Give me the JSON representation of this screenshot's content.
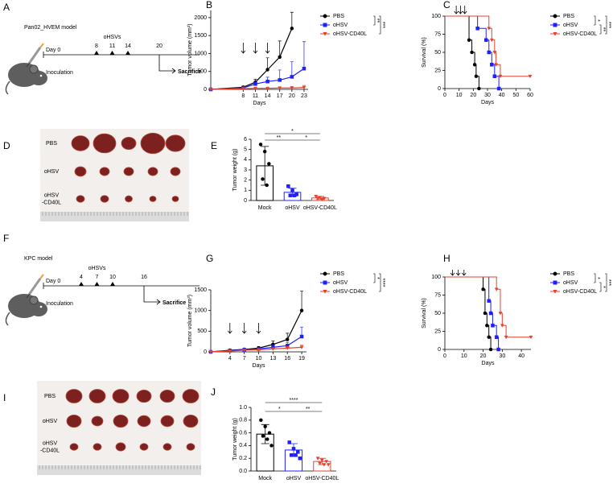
{
  "schematics": [
    {
      "panel_label": "A",
      "model": "Pan02_HVEM model",
      "start_label": "Day 0",
      "treatment": "oHSVs",
      "injection_days": [
        8,
        11,
        14
      ],
      "sacrifice_day": 20,
      "inoculation": "Inoculation",
      "sacrifice": "Sacrifice"
    },
    {
      "panel_label": "F",
      "model": "KPC model",
      "start_label": "Day 0",
      "treatment": "oHSVs",
      "injection_days": [
        4,
        7,
        10
      ],
      "sacrifice_day": 16,
      "inoculation": "Inoculation",
      "sacrifice": "Sacrifice"
    }
  ],
  "photos": [
    {
      "panel_label": "D",
      "row_labels": [
        [
          "PBS"
        ],
        [
          "oHSV"
        ],
        [
          "oHSV",
          "-CD40L"
        ]
      ]
    },
    {
      "panel_label": "I",
      "row_labels": [
        [
          "PBS"
        ],
        [
          "oHSV"
        ],
        [
          "oHSV",
          "-CD40L"
        ]
      ]
    }
  ],
  "chart_data": [
    {
      "panel_label": "B",
      "type": "line",
      "xlabel": "Days",
      "ylabel": "Tumor volume (mm³)",
      "x": [
        0,
        8,
        11,
        14,
        17,
        20,
        23
      ],
      "xlim": [
        0,
        24
      ],
      "xticks": [
        8,
        11,
        14,
        17,
        20,
        23
      ],
      "ylim": [
        0,
        2200
      ],
      "yticks": [
        0,
        500,
        1000,
        1500,
        2000
      ],
      "arrow_days": [
        8,
        11,
        14
      ],
      "significance": [
        "**",
        "***"
      ],
      "series": [
        {
          "name": "PBS",
          "color": "#000000",
          "marker": "circle",
          "values": [
            0,
            60,
            200,
            550,
            900,
            1700,
            null
          ],
          "errors": [
            0,
            30,
            80,
            330,
            450,
            450,
            null
          ]
        },
        {
          "name": "oHSV",
          "color": "#1f1fff",
          "marker": "square",
          "values": [
            0,
            40,
            150,
            220,
            260,
            350,
            580
          ],
          "errors": [
            0,
            20,
            70,
            120,
            280,
            420,
            750
          ]
        },
        {
          "name": "oHSV-CD40L",
          "color": "#e8412c",
          "marker": "triangle-down",
          "values": [
            0,
            20,
            30,
            30,
            40,
            40,
            50
          ],
          "errors": [
            0,
            10,
            20,
            20,
            30,
            40,
            60
          ]
        }
      ]
    },
    {
      "panel_label": "C",
      "type": "survival",
      "xlabel": "Days",
      "ylabel": "Survival (%)",
      "xlim": [
        0,
        60
      ],
      "xticks": [
        0,
        10,
        20,
        30,
        40,
        50,
        60
      ],
      "ylim": [
        0,
        100
      ],
      "yticks": [
        0,
        25,
        50,
        75,
        100
      ],
      "arrow_days": [
        8,
        11,
        14
      ],
      "significance": [
        "*",
        "**",
        "***"
      ],
      "series": [
        {
          "name": "PBS",
          "color": "#000000",
          "marker": "circle",
          "x": [
            0,
            17,
            19,
            21,
            22,
            24
          ],
          "values": [
            100,
            67,
            50,
            33,
            17,
            0
          ]
        },
        {
          "name": "oHSV",
          "color": "#1f1fff",
          "marker": "square",
          "x": [
            0,
            23,
            29,
            31,
            33,
            35,
            38
          ],
          "values": [
            100,
            83,
            67,
            50,
            33,
            17,
            0
          ]
        },
        {
          "name": "oHSV-CD40L",
          "color": "#e8412c",
          "marker": "triangle-down",
          "x": [
            0,
            31,
            33,
            35,
            36,
            39,
            60
          ],
          "values": [
            100,
            83,
            67,
            50,
            33,
            17,
            17
          ]
        }
      ]
    },
    {
      "panel_label": "E",
      "type": "bar",
      "ylabel": "Tumor weight (g)",
      "categories": [
        "Mock",
        "oHSV",
        "oHSV-CD40L"
      ],
      "colors": [
        "#000000",
        "#1f1fff",
        "#e8412c"
      ],
      "markers": [
        "circle",
        "square",
        "triangle-down"
      ],
      "values": [
        3.4,
        0.8,
        0.25
      ],
      "errors": [
        1.9,
        0.4,
        0.15
      ],
      "points": [
        [
          5.5,
          4.8,
          3.6,
          2.1,
          1.5
        ],
        [
          1.4,
          1.0,
          0.6,
          0.5,
          0.5
        ],
        [
          0.4,
          0.3,
          0.2,
          0.2,
          0.1
        ]
      ],
      "ylim": [
        0,
        6
      ],
      "yticks": [
        0,
        1,
        2,
        3,
        4,
        5,
        6
      ],
      "significance": [
        "*",
        "**",
        "*"
      ]
    },
    {
      "panel_label": "G",
      "type": "line",
      "xlabel": "Days",
      "ylabel": "Tumor volume (mm³)",
      "x": [
        0,
        4,
        7,
        10,
        13,
        16,
        19
      ],
      "xlim": [
        0,
        20
      ],
      "xticks": [
        4,
        7,
        10,
        13,
        16,
        19
      ],
      "ylim": [
        0,
        1500
      ],
      "yticks": [
        0,
        500,
        1000,
        1500
      ],
      "arrow_days": [
        4,
        7,
        10
      ],
      "significance": [
        "*",
        "****"
      ],
      "series": [
        {
          "name": "PBS",
          "color": "#000000",
          "marker": "circle",
          "values": [
            0,
            40,
            60,
            90,
            180,
            300,
            1000
          ],
          "errors": [
            0,
            20,
            20,
            40,
            80,
            150,
            470
          ]
        },
        {
          "name": "oHSV",
          "color": "#1f1fff",
          "marker": "square",
          "values": [
            0,
            30,
            50,
            70,
            110,
            150,
            370
          ],
          "errors": [
            0,
            20,
            20,
            30,
            60,
            80,
            230
          ]
        },
        {
          "name": "oHSV-CD40L",
          "color": "#e8412c",
          "marker": "triangle-down",
          "values": [
            0,
            20,
            40,
            50,
            70,
            90,
            110
          ],
          "errors": [
            0,
            10,
            20,
            20,
            30,
            40,
            50
          ]
        }
      ]
    },
    {
      "panel_label": "H",
      "type": "survival",
      "xlabel": "Days",
      "ylabel": "Survival (%)",
      "xlim": [
        0,
        45
      ],
      "xticks": [
        0,
        10,
        20,
        30,
        40
      ],
      "ylim": [
        0,
        100
      ],
      "yticks": [
        0,
        25,
        50,
        75,
        100
      ],
      "arrow_days": [
        4,
        7,
        10
      ],
      "significance": [
        "*",
        "*",
        "***"
      ],
      "series": [
        {
          "name": "PBS",
          "color": "#000000",
          "marker": "circle",
          "x": [
            0,
            20,
            21,
            22,
            23,
            24
          ],
          "values": [
            100,
            83,
            50,
            33,
            17,
            0
          ]
        },
        {
          "name": "oHSV",
          "color": "#1f1fff",
          "marker": "square",
          "x": [
            0,
            23,
            24,
            25,
            27,
            28
          ],
          "values": [
            100,
            67,
            50,
            33,
            17,
            0
          ]
        },
        {
          "name": "oHSV-CD40L",
          "color": "#e8412c",
          "marker": "triangle-down",
          "x": [
            0,
            27,
            29,
            30,
            32,
            45
          ],
          "values": [
            100,
            83,
            50,
            33,
            17,
            17
          ]
        }
      ]
    },
    {
      "panel_label": "J",
      "type": "bar",
      "ylabel": "Tumor weight (g)",
      "categories": [
        "Mock",
        "oHSV",
        "oHSV-CD40L"
      ],
      "colors": [
        "#000000",
        "#1f1fff",
        "#e8412c"
      ],
      "markers": [
        "circle",
        "square",
        "triangle-down"
      ],
      "values": [
        0.58,
        0.33,
        0.15
      ],
      "errors": [
        0.15,
        0.1,
        0.05
      ],
      "points": [
        [
          0.8,
          0.7,
          0.6,
          0.55,
          0.5,
          0.4
        ],
        [
          0.45,
          0.35,
          0.3,
          0.25,
          0.25,
          0.2
        ],
        [
          0.2,
          0.17,
          0.15,
          0.12,
          0.1,
          0.1
        ]
      ],
      "ylim": [
        0,
        1
      ],
      "yticks": [
        {
          "value": 0,
          "label": "0.0"
        },
        0.2,
        0.4,
        0.6,
        0.8,
        {
          "value": 1,
          "label": "1.0"
        }
      ],
      "significance": [
        "****",
        "*",
        "**"
      ]
    }
  ]
}
